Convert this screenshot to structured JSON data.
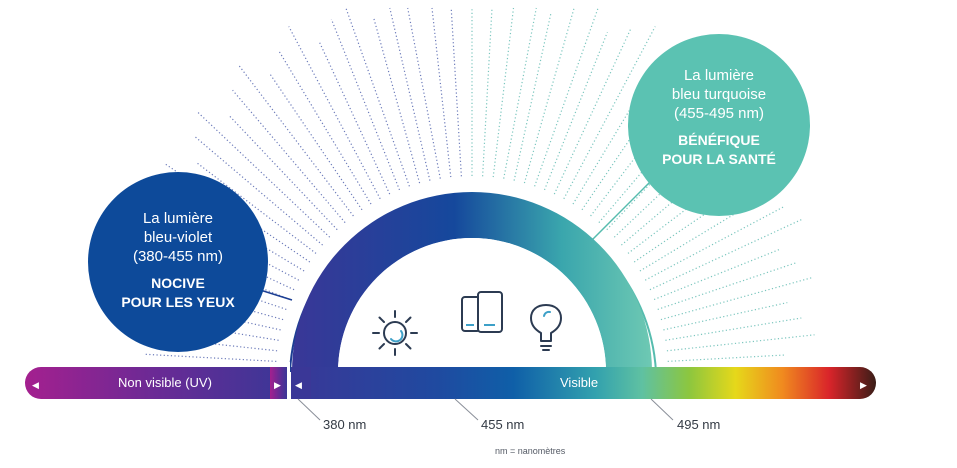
{
  "violet_circle": {
    "line1": "La lumière",
    "line2": "bleu-violet",
    "line3": "(380-455 nm)",
    "bold1": "NOCIVE",
    "bold2": "POUR LES YEUX",
    "color": "#0d4a9a"
  },
  "turquoise_circle": {
    "line1": "La lumière",
    "line2": "bleu turquoise",
    "line3": "(455-495 nm)",
    "bold1": "BÉNÉFIQUE",
    "bold2": "POUR LA SANTÉ",
    "color": "#5bc2b2"
  },
  "spectrum_bar": {
    "non_visible_label": "Non visible (UV)",
    "visible_label": "Visible"
  },
  "markers": {
    "m380": "380 nm",
    "m455": "455 nm",
    "m495": "495 nm"
  },
  "footnote": "nm = nanomètres",
  "icons": [
    "sun-icon",
    "devices-icon",
    "lightbulb-icon"
  ]
}
